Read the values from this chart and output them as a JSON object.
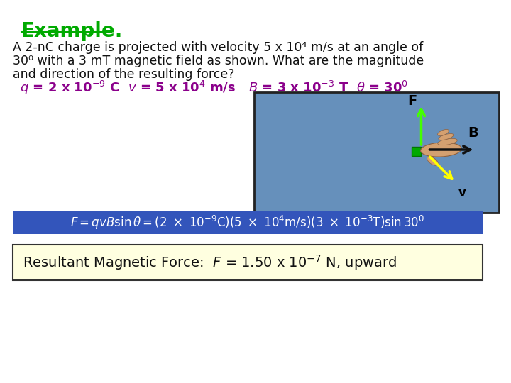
{
  "title": "Example.",
  "title_color": "#00AA00",
  "title_fontsize": 20,
  "body_text1": "A 2-nC charge is projected with velocity 5 x 10⁴ m/s at an angle of",
  "body_text2": "30⁰ with a 3 mT magnetic field as shown. What are the magnitude",
  "body_text3": "and direction of the resulting force?",
  "body_fontsize": 12.5,
  "formula_color": "#8B008B",
  "formula_fontsize": 13,
  "equation_box_color": "#3355BB",
  "equation_fontsize": 12,
  "result_box_bg": "#FFFFE0",
  "result_fontsize": 14,
  "diagram_bg": "#6690BB",
  "diagram_border": "#222222",
  "bg_color": "#FFFFFF",
  "F_label": "F",
  "B_label": "B",
  "v_label": "v"
}
